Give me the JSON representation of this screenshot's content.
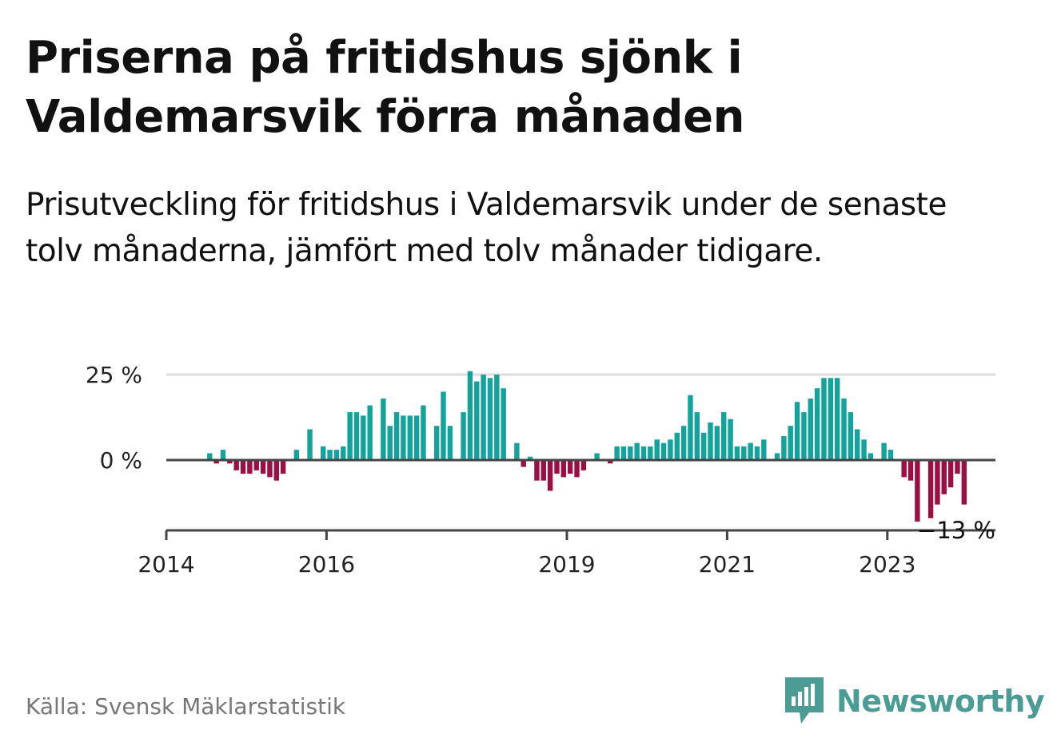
{
  "title": "Priserna på fritidshus sjönk i Valdemarsvik förra månaden",
  "subtitle": "Prisutveckling för fritidshus i Valdemarsvik under de senaste tolv månaderna, jämfört med tolv månader tidigare.",
  "source": "Källa: Svensk Mäklarstatistik",
  "brand": {
    "name": "Newsworthy",
    "icon": "newsworthy-bar-chart-logo-icon"
  },
  "colors": {
    "positive": "#14a39a",
    "negative": "#9b0f45",
    "axis": "#444444",
    "grid": "#dddddd"
  },
  "chart_data": {
    "type": "bar",
    "ylim": [
      -20,
      27
    ],
    "y_ticks": [
      {
        "value": 25,
        "label": "25 %"
      },
      {
        "value": 0,
        "label": "0 %"
      }
    ],
    "x_ticks": [
      {
        "year": 2014,
        "label": "2014"
      },
      {
        "year": 2016,
        "label": "2016"
      },
      {
        "year": 2019,
        "label": "2019"
      },
      {
        "year": 2021,
        "label": "2021"
      },
      {
        "year": 2023,
        "label": "2023"
      }
    ],
    "x_start": "2014-01",
    "end_label": "−13 %",
    "grid": "horizontal at 25 %",
    "values": [
      null,
      null,
      null,
      null,
      null,
      null,
      2,
      -1,
      3,
      -1,
      -3,
      -4,
      -4,
      -3,
      -4,
      -5,
      -6,
      -4,
      null,
      3,
      null,
      9,
      null,
      4,
      3,
      3,
      4,
      14,
      14,
      13,
      16,
      null,
      18,
      10,
      14,
      13,
      13,
      13,
      16,
      null,
      10,
      20,
      10,
      null,
      14,
      26,
      23,
      25,
      24,
      25,
      21,
      null,
      5,
      -2,
      1,
      -6,
      -6,
      -9,
      -4,
      -5,
      -4,
      -5,
      -3,
      null,
      2,
      null,
      -1,
      4,
      4,
      4,
      5,
      4,
      4,
      6,
      5,
      6,
      8,
      10,
      19,
      14,
      8,
      11,
      10,
      14,
      12,
      4,
      4,
      5,
      4,
      6,
      null,
      2,
      7,
      10,
      17,
      14,
      18,
      21,
      24,
      24,
      24,
      18,
      14,
      9,
      6,
      2,
      null,
      5,
      3,
      null,
      -5,
      -6,
      -18,
      null,
      -17,
      -13,
      -10,
      -8,
      -4,
      -13
    ]
  }
}
